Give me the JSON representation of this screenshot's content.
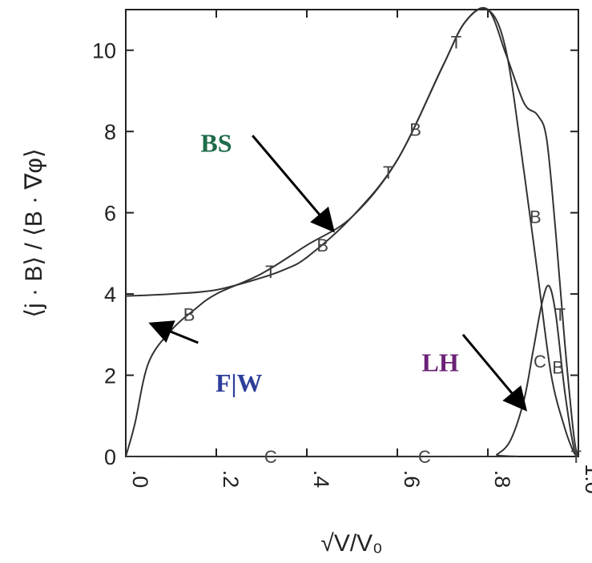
{
  "chart_data": {
    "type": "line",
    "xlabel": "√V/V₀",
    "ylabel": "⟨j · B⟩ / ⟨B · ∇φ⟩",
    "xlim": [
      0,
      1.0
    ],
    "ylim": [
      0,
      11
    ],
    "x_ticks": [
      {
        "value": 0.0,
        "label": ".0"
      },
      {
        "value": 0.2,
        "label": ".2"
      },
      {
        "value": 0.4,
        "label": ".4"
      },
      {
        "value": 0.6,
        "label": ".6"
      },
      {
        "value": 0.8,
        "label": ".8"
      },
      {
        "value": 1.0,
        "label": "1.0"
      }
    ],
    "y_ticks": [
      {
        "value": 0,
        "label": "0"
      },
      {
        "value": 2,
        "label": "2"
      },
      {
        "value": 4,
        "label": "4"
      },
      {
        "value": 6,
        "label": "6"
      },
      {
        "value": 8,
        "label": "8"
      },
      {
        "value": 10,
        "label": "10"
      }
    ],
    "grid": false,
    "series": [
      {
        "marker": "T",
        "x": [
          0.0,
          0.1,
          0.2,
          0.3,
          0.35,
          0.4,
          0.5,
          0.6,
          0.7,
          0.75,
          0.8,
          0.84,
          0.88,
          0.91,
          0.93,
          0.95,
          0.97,
          0.99,
          1.0
        ],
        "y": [
          3.95,
          4.0,
          4.1,
          4.4,
          4.6,
          4.9,
          5.9,
          7.3,
          9.6,
          10.7,
          11.0,
          9.9,
          8.7,
          8.4,
          7.8,
          5.5,
          2.8,
          0.5,
          0.0
        ],
        "marker_x": [
          0.32,
          0.58,
          0.73,
          0.96,
          0.995
        ],
        "marker_y": [
          4.55,
          7.0,
          10.2,
          3.5,
          0.0
        ]
      },
      {
        "marker": "B",
        "x": [
          0.0,
          0.02,
          0.05,
          0.1,
          0.15,
          0.2,
          0.3,
          0.4,
          0.5,
          0.6,
          0.7,
          0.75,
          0.8,
          0.84,
          0.88,
          0.91,
          0.94,
          0.97,
          0.99,
          1.0
        ],
        "y": [
          0.0,
          0.8,
          2.3,
          3.1,
          3.6,
          4.0,
          4.5,
          5.2,
          5.9,
          7.3,
          9.6,
          10.7,
          11.0,
          10.0,
          7.0,
          4.5,
          2.0,
          0.7,
          0.1,
          0.0
        ],
        "marker_x": [
          0.14,
          0.435,
          0.64,
          0.905,
          0.955
        ],
        "marker_y": [
          3.5,
          5.2,
          8.05,
          5.9,
          2.2
        ]
      },
      {
        "marker": "C",
        "x": [
          0.0,
          0.8,
          0.82,
          0.85,
          0.88,
          0.9,
          0.92,
          0.935,
          0.95,
          0.97,
          0.99,
          1.0
        ],
        "y": [
          0.0,
          0.0,
          0.05,
          0.4,
          1.4,
          2.6,
          3.8,
          4.2,
          3.5,
          1.6,
          0.2,
          0.0
        ],
        "marker_x": [
          0.32,
          0.66,
          0.915
        ],
        "marker_y": [
          0.0,
          0.0,
          2.35
        ]
      }
    ],
    "annotations": [
      {
        "text": "BS",
        "color": "#1f6b4a",
        "label_x": 0.2,
        "label_y": 7.5,
        "arrow_from_x": 0.28,
        "arrow_from_y": 7.9,
        "arrow_to_x": 0.455,
        "arrow_to_y": 5.6
      },
      {
        "text": "F|W",
        "color": "#2e3f9a",
        "label_x": 0.25,
        "label_y": 1.6,
        "arrow_from_x": 0.16,
        "arrow_from_y": 2.8,
        "arrow_from_y_note": "",
        "arrow_to_x": 0.06,
        "arrow_to_y": 3.25
      },
      {
        "text": "LH",
        "color": "#6a2277",
        "label_x": 0.695,
        "label_y": 2.1,
        "arrow_from_x": 0.745,
        "arrow_from_y": 3.0,
        "arrow_to_x": 0.88,
        "arrow_to_y": 1.2
      }
    ]
  }
}
